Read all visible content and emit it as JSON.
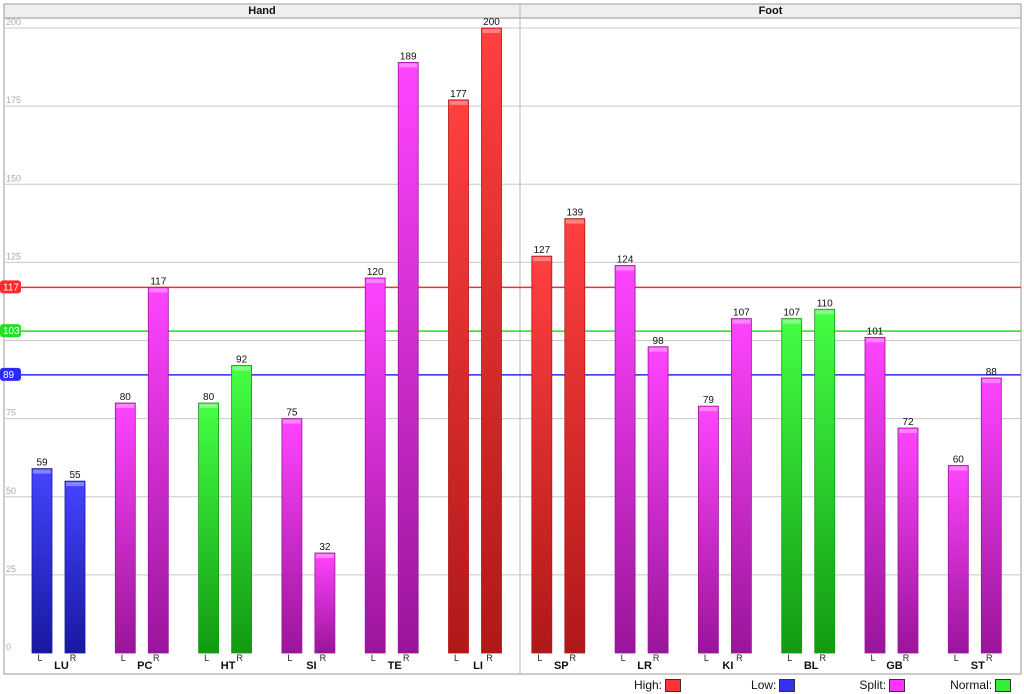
{
  "chart_data": {
    "type": "bar",
    "panels": [
      {
        "title": "Hand",
        "groups": [
          {
            "label": "LU",
            "bars": [
              {
                "side": "L",
                "value": 59,
                "status": "low"
              },
              {
                "side": "R",
                "value": 55,
                "status": "low"
              }
            ]
          },
          {
            "label": "PC",
            "bars": [
              {
                "side": "L",
                "value": 80,
                "status": "split"
              },
              {
                "side": "R",
                "value": 117,
                "status": "split"
              }
            ]
          },
          {
            "label": "HT",
            "bars": [
              {
                "side": "L",
                "value": 80,
                "status": "normal"
              },
              {
                "side": "R",
                "value": 92,
                "status": "normal"
              }
            ]
          },
          {
            "label": "SI",
            "bars": [
              {
                "side": "L",
                "value": 75,
                "status": "split"
              },
              {
                "side": "R",
                "value": 32,
                "status": "split"
              }
            ]
          },
          {
            "label": "TE",
            "bars": [
              {
                "side": "L",
                "value": 120,
                "status": "split"
              },
              {
                "side": "R",
                "value": 189,
                "status": "split"
              }
            ]
          },
          {
            "label": "LI",
            "bars": [
              {
                "side": "L",
                "value": 177,
                "status": "high"
              },
              {
                "side": "R",
                "value": 200,
                "status": "high"
              }
            ]
          }
        ]
      },
      {
        "title": "Foot",
        "groups": [
          {
            "label": "SP",
            "bars": [
              {
                "side": "L",
                "value": 127,
                "status": "high"
              },
              {
                "side": "R",
                "value": 139,
                "status": "high"
              }
            ]
          },
          {
            "label": "LR",
            "bars": [
              {
                "side": "L",
                "value": 124,
                "status": "split"
              },
              {
                "side": "R",
                "value": 98,
                "status": "split"
              }
            ]
          },
          {
            "label": "KI",
            "bars": [
              {
                "side": "L",
                "value": 79,
                "status": "split"
              },
              {
                "side": "R",
                "value": 107,
                "status": "split"
              }
            ]
          },
          {
            "label": "BL",
            "bars": [
              {
                "side": "L",
                "value": 107,
                "status": "normal"
              },
              {
                "side": "R",
                "value": 110,
                "status": "normal"
              }
            ]
          },
          {
            "label": "GB",
            "bars": [
              {
                "side": "L",
                "value": 101,
                "status": "split"
              },
              {
                "side": "R",
                "value": 72,
                "status": "split"
              }
            ]
          },
          {
            "label": "ST",
            "bars": [
              {
                "side": "L",
                "value": 60,
                "status": "split"
              },
              {
                "side": "R",
                "value": 88,
                "status": "split"
              }
            ]
          }
        ]
      }
    ],
    "ylim": [
      0,
      200
    ],
    "yticks": [
      0,
      25,
      50,
      75,
      100,
      125,
      150,
      175,
      200
    ],
    "grid": true,
    "reference_lines": [
      {
        "name": "high",
        "value": 117,
        "color": "#ff2a2a"
      },
      {
        "name": "normal",
        "value": 103,
        "color": "#22e022"
      },
      {
        "name": "low",
        "value": 89,
        "color": "#2a2aff"
      }
    ],
    "legend": {
      "position": "bottom-right",
      "items": [
        {
          "label": "High:",
          "key": "high",
          "color": "#ff3333"
        },
        {
          "label": "Low:",
          "key": "low",
          "color": "#3333ee"
        },
        {
          "label": "Split:",
          "key": "split",
          "color": "#ff33ff"
        },
        {
          "label": "Normal:",
          "key": "normal",
          "color": "#33ee33"
        }
      ]
    },
    "status_colors": {
      "high": {
        "light": "#ff4040",
        "dark": "#b01818"
      },
      "low": {
        "light": "#4444ff",
        "dark": "#1818a0"
      },
      "split": {
        "light": "#ff44ff",
        "dark": "#9a159a"
      },
      "normal": {
        "light": "#44ff44",
        "dark": "#129a12"
      }
    }
  }
}
